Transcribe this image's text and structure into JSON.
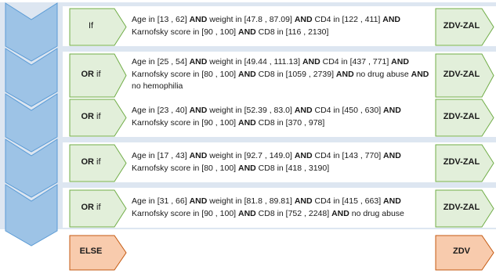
{
  "rows": [
    {
      "prefix": "",
      "keyword": "If",
      "rule": [
        {
          "t": "Age in [13 , 62] "
        },
        {
          "b": "AND"
        },
        {
          "t": " weight in [47.8 , 87.09] "
        },
        {
          "b": "AND"
        },
        {
          "t": " CD4 in [122 , 411] "
        },
        {
          "b": "AND"
        },
        {
          "t": " Karnofsky score in [90 , 100] "
        },
        {
          "b": "AND"
        },
        {
          "t": " CD8 in [116 , 2130]"
        }
      ],
      "output": "ZDV-ZAL"
    },
    {
      "prefix": "OR",
      "keyword": " if",
      "rule": [
        {
          "t": "Age in [25 , 54] "
        },
        {
          "b": "AND"
        },
        {
          "t": " weight in [49.44 , 111.13] "
        },
        {
          "b": "AND"
        },
        {
          "t": " CD4 in [437 , 771] "
        },
        {
          "b": "AND"
        },
        {
          "t": " Karnofsky score in [80 , 100] "
        },
        {
          "b": "AND"
        },
        {
          "t": " CD8 in [1059 , 2739] "
        },
        {
          "b": "AND"
        },
        {
          "t": " no drug abuse "
        },
        {
          "b": "AND"
        },
        {
          "t": " no hemophilia"
        }
      ],
      "output": "ZDV-ZAL"
    },
    {
      "prefix": "OR",
      "keyword": " if",
      "rule": [
        {
          "t": "Age in [23 , 40] "
        },
        {
          "b": "AND"
        },
        {
          "t": " weight in [52.39 , 83.0] "
        },
        {
          "b": "AND"
        },
        {
          "t": " CD4 in [450 , 630] "
        },
        {
          "b": "AND"
        },
        {
          "t": " Karnofsky score in [90 , 100] "
        },
        {
          "b": "AND"
        },
        {
          "t": " CD8 in [370 , 978]"
        }
      ],
      "output": "ZDV-ZAL"
    },
    {
      "prefix": "OR",
      "keyword": " if",
      "rule": [
        {
          "t": "Age in [17 , 43] "
        },
        {
          "b": "AND"
        },
        {
          "t": " weight in [92.7 , 149.0] "
        },
        {
          "b": "AND"
        },
        {
          "t": " CD4 in [143 , 770] "
        },
        {
          "b": "AND"
        },
        {
          "t": " Karnofsky score in [80 , 100] "
        },
        {
          "b": "AND"
        },
        {
          "t": " CD8  in [418 , 3190]"
        }
      ],
      "output": "ZDV-ZAL"
    },
    {
      "prefix": "OR",
      "keyword": " if",
      "rule": [
        {
          "t": "Age in [31 , 66] "
        },
        {
          "b": "AND"
        },
        {
          "t": " weight in [81.8 , 89.81] "
        },
        {
          "b": "AND"
        },
        {
          "t": " CD4 in [415 , 663] "
        },
        {
          "b": "AND"
        },
        {
          "t": " Karnofsky score in [90 , 100] "
        },
        {
          "b": "AND"
        },
        {
          "t": " CD8 in [752 , 2248] "
        },
        {
          "b": "AND"
        },
        {
          "t": " no drug abuse"
        }
      ],
      "output": "ZDV-ZAL"
    }
  ],
  "else_row": {
    "keyword": "ELSE",
    "output": "ZDV"
  },
  "colors": {
    "condition_fill": "#e2efda",
    "condition_stroke": "#70ad47",
    "else_fill": "#f8cbad",
    "else_stroke": "#c55a11",
    "chevron_fill": "#9dc3e6",
    "chevron_stroke": "#5b9bd5",
    "band": "#dde6f1"
  }
}
